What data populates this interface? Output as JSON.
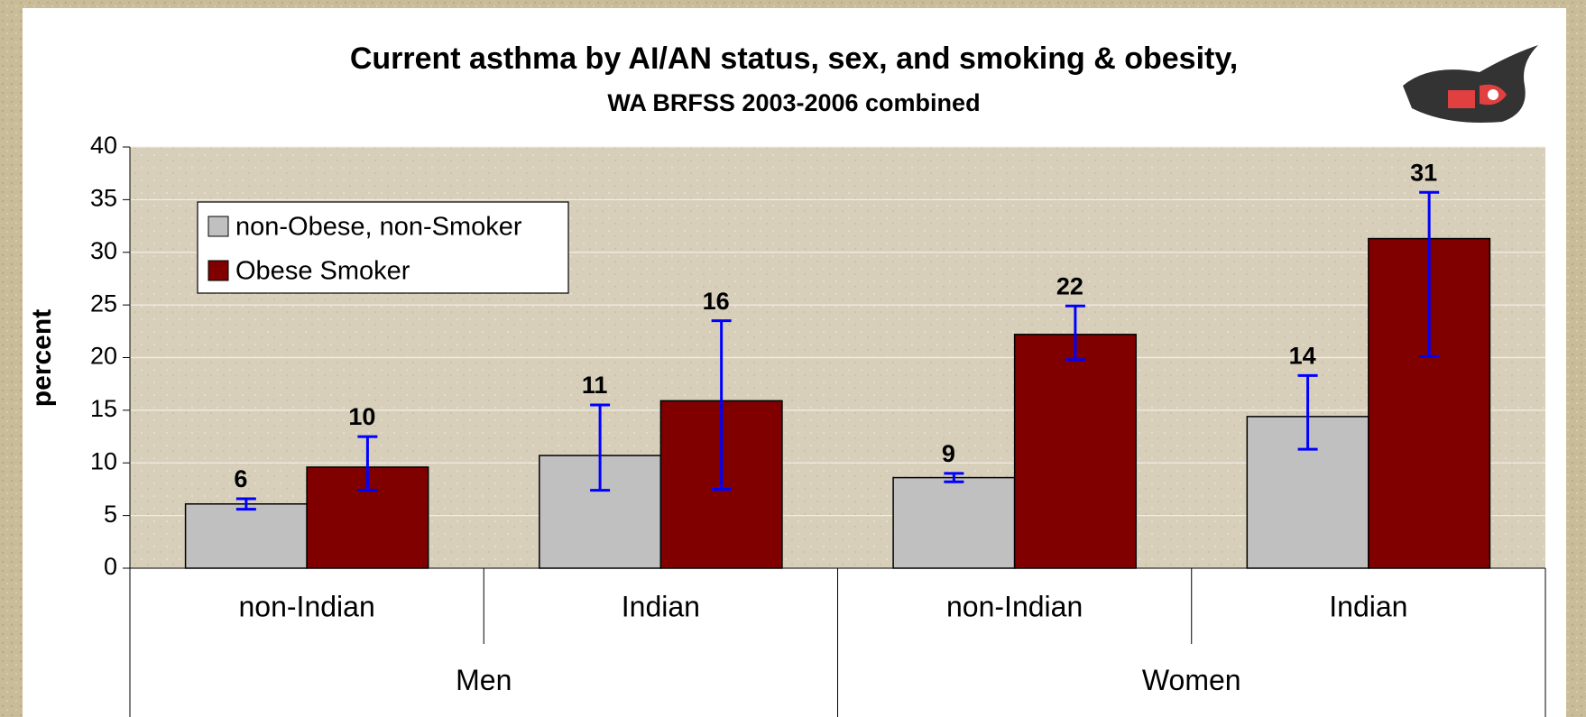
{
  "chart_data": {
    "type": "bar",
    "title": "Current asthma by AI/AN status, sex, and smoking & obesity,",
    "subtitle": "WA BRFSS 2003-2006 combined",
    "ylabel": "percent",
    "categories": [
      "non-Indian",
      "Indian",
      "non-Indian",
      "Indian"
    ],
    "groups": [
      "Men",
      "Women"
    ],
    "series": [
      {
        "name": "non-Obese, non-Smoker",
        "color": "#c0c0c0",
        "values": [
          6.1,
          10.7,
          8.6,
          14.4
        ],
        "value_labels": [
          "6",
          "11",
          "9",
          "14"
        ],
        "lower": [
          5.6,
          7.4,
          8.2,
          11.3
        ],
        "upper": [
          6.6,
          15.5,
          9.0,
          18.3
        ]
      },
      {
        "name": "Obese Smoker",
        "color": "#800000",
        "values": [
          9.6,
          15.9,
          22.2,
          31.3
        ],
        "value_labels": [
          "10",
          "16",
          "22",
          "31"
        ],
        "lower": [
          7.4,
          7.5,
          19.8,
          20.1
        ],
        "upper": [
          12.5,
          23.5,
          24.9,
          35.7
        ]
      }
    ],
    "error_color": "#0000ff",
    "ylim": [
      0,
      40
    ],
    "yticks": [
      0,
      5,
      10,
      15,
      20,
      25,
      30,
      35,
      40
    ],
    "grid": true,
    "legend": "upper left"
  }
}
